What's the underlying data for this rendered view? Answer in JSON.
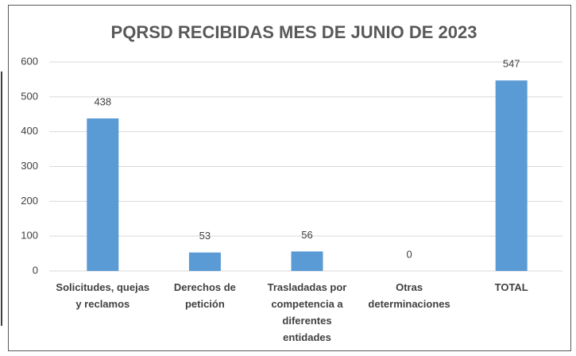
{
  "chart_data": {
    "type": "bar",
    "title": "PQRSD RECIBIDAS MES DE JUNIO DE 2023",
    "categories": [
      "Solicitudes, quejas y reclamos",
      "Derechos de petición",
      "Trasladadas por competencia a diferentes entidades",
      "Otras determinaciones",
      "TOTAL"
    ],
    "values": [
      438,
      53,
      56,
      0,
      547
    ],
    "color": "#5b9bd5",
    "ylim": [
      0,
      600
    ],
    "yticks": [
      0,
      100,
      200,
      300,
      400,
      500,
      600
    ],
    "grid": true
  }
}
